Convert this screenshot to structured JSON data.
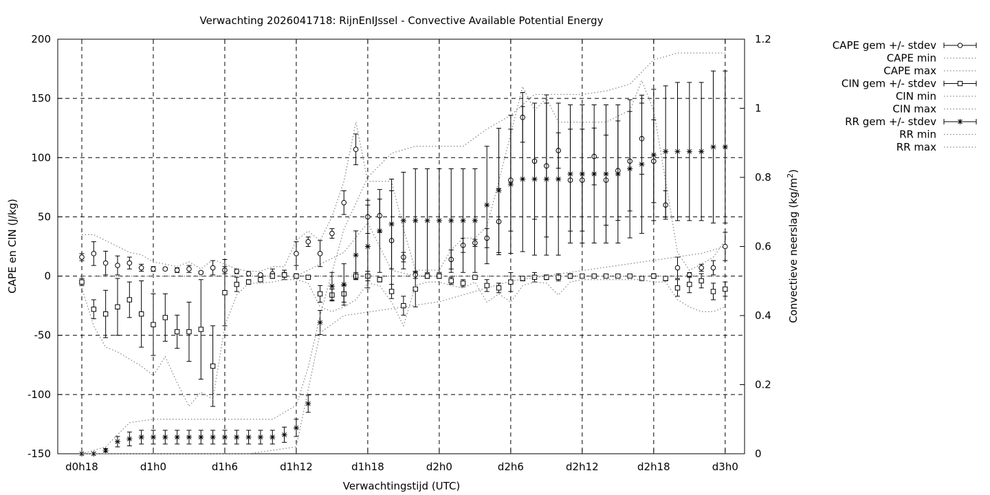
{
  "chart_data": {
    "type": "line",
    "title": "Verwachting 2026041718: RijnEnIJssel - Convective Available Potential Energy",
    "xlabel": "Verwachtingstijd (UTC)",
    "ylabel": "CAPE en CIN (J/kg)",
    "y2label_main": "Convectieve neerslag (kg/m",
    "y2label_sup": "2",
    "y2label_end": ")",
    "x_range": [
      -0.5,
      57
    ],
    "ylim": [
      -150,
      200
    ],
    "y2lim": [
      0,
      1.2
    ],
    "grid": true,
    "legend_position": "top-right outside",
    "x_ticks": [
      {
        "x": 0,
        "label": "d0h18"
      },
      {
        "x": 6,
        "label": "d1h0"
      },
      {
        "x": 12,
        "label": "d1h6"
      },
      {
        "x": 18,
        "label": "d1h12"
      },
      {
        "x": 24,
        "label": "d1h18"
      },
      {
        "x": 30,
        "label": "d2h0"
      },
      {
        "x": 36,
        "label": "d2h6"
      },
      {
        "x": 42,
        "label": "d2h12"
      },
      {
        "x": 48,
        "label": "d2h18"
      },
      {
        "x": 54,
        "label": "d3h0"
      }
    ],
    "y_ticks": [
      {
        "v": -150,
        "label": "-150"
      },
      {
        "v": -100,
        "label": "-100"
      },
      {
        "v": -50,
        "label": "-50"
      },
      {
        "v": 0,
        "label": "0"
      },
      {
        "v": 50,
        "label": "50"
      },
      {
        "v": 100,
        "label": "100"
      },
      {
        "v": 150,
        "label": "150"
      },
      {
        "v": 200,
        "label": "200"
      }
    ],
    "y2_ticks": [
      {
        "v": 0,
        "label": "0"
      },
      {
        "v": 0.2,
        "label": "0.2"
      },
      {
        "v": 0.4,
        "label": "0.4"
      },
      {
        "v": 0.6,
        "label": "0.6"
      },
      {
        "v": 0.8,
        "label": "0.8"
      },
      {
        "v": 1.0,
        "label": "1"
      },
      {
        "v": 1.2,
        "label": "1.2"
      }
    ],
    "series": [
      {
        "name": "CAPE gem +/- stdev",
        "axis": "y1",
        "style": "errorbar",
        "marker": "circle",
        "x": [
          0,
          1,
          2,
          3,
          4,
          5,
          6,
          7,
          8,
          9,
          10,
          11,
          12,
          13,
          14,
          15,
          16,
          17,
          18,
          19,
          20,
          21,
          22,
          23,
          24,
          25,
          26,
          27,
          28,
          29,
          30,
          31,
          32,
          33,
          34,
          35,
          36,
          37,
          38,
          39,
          40,
          41,
          42,
          43,
          44,
          45,
          46,
          47,
          48,
          49,
          50,
          51,
          52,
          53,
          54
        ],
        "y": [
          16,
          19,
          11,
          9,
          11,
          7,
          6,
          6,
          5,
          6,
          3,
          7,
          5,
          4,
          2,
          1,
          2,
          1,
          19,
          29,
          19,
          36,
          62,
          107,
          50,
          51,
          30,
          16,
          1,
          0,
          0,
          14,
          26,
          28,
          32,
          46,
          81,
          134,
          97,
          93,
          106,
          81,
          81,
          101,
          81,
          89,
          97,
          116,
          97,
          60,
          7,
          1,
          7,
          7,
          25
        ],
        "err": [
          3,
          10,
          10,
          8,
          5,
          3,
          2,
          1,
          2,
          3,
          1,
          6,
          3,
          2,
          2,
          1,
          4,
          4,
          10,
          4,
          11,
          4,
          10,
          13,
          14,
          14,
          42,
          4,
          3,
          2,
          2,
          8,
          6,
          3,
          8,
          28,
          43,
          21,
          49,
          60,
          15,
          43,
          43,
          24,
          38,
          42,
          42,
          30,
          35,
          12,
          9,
          2,
          3,
          6,
          12
        ]
      },
      {
        "name": "CAPE min",
        "axis": "y1",
        "style": "dotted",
        "x": [
          0,
          2,
          4,
          6,
          8,
          10,
          12,
          14,
          16,
          18,
          20,
          22,
          24,
          26,
          28,
          30,
          32,
          34,
          36,
          38,
          40,
          42,
          44,
          46,
          48,
          50,
          52,
          54
        ],
        "y": [
          0,
          0,
          0,
          0,
          0,
          0,
          0,
          0,
          0,
          0,
          10,
          20,
          45,
          5,
          0,
          0,
          0,
          0,
          0,
          0,
          0,
          0,
          0,
          0,
          0,
          0,
          0,
          0
        ]
      },
      {
        "name": "CAPE max",
        "axis": "y1",
        "style": "dotted",
        "x": [
          0,
          1,
          2,
          3,
          4,
          5,
          6,
          7,
          8,
          9,
          10,
          11,
          12,
          13,
          14,
          15,
          16,
          17,
          18,
          19,
          20,
          21,
          22,
          23,
          24,
          25,
          26,
          27,
          28,
          29,
          30,
          31,
          32,
          33,
          34,
          35,
          36,
          37,
          38,
          39,
          40,
          41,
          42,
          43,
          44,
          45,
          46,
          47,
          48,
          49,
          50,
          51,
          52,
          53,
          54
        ],
        "y": [
          35,
          35,
          30,
          25,
          20,
          18,
          12,
          10,
          8,
          12,
          6,
          14,
          10,
          6,
          4,
          4,
          8,
          8,
          30,
          38,
          30,
          50,
          80,
          130,
          80,
          80,
          80,
          40,
          5,
          5,
          5,
          22,
          32,
          32,
          42,
          80,
          120,
          160,
          140,
          150,
          130,
          130,
          130,
          130,
          130,
          135,
          140,
          165,
          140,
          80,
          20,
          5,
          10,
          16,
          30
        ]
      },
      {
        "name": "CIN gem +/- stdev",
        "axis": "y1",
        "style": "errorbar",
        "marker": "square",
        "x": [
          0,
          1,
          2,
          3,
          4,
          5,
          6,
          7,
          8,
          9,
          10,
          11,
          12,
          13,
          14,
          15,
          16,
          17,
          18,
          19,
          20,
          21,
          22,
          23,
          24,
          25,
          26,
          27,
          28,
          29,
          30,
          31,
          32,
          33,
          34,
          35,
          36,
          37,
          38,
          39,
          40,
          41,
          42,
          43,
          44,
          45,
          46,
          47,
          48,
          49,
          50,
          51,
          52,
          53,
          54
        ],
        "y": [
          -5,
          -28,
          -32,
          -26,
          -20,
          -32,
          -41,
          -35,
          -47,
          -47,
          -45,
          -76,
          -14,
          -7,
          -5,
          -3,
          0,
          1,
          0,
          -1,
          -15,
          -16,
          -15,
          0,
          0,
          -3,
          -13,
          -25,
          -11,
          0,
          0,
          -4,
          -6,
          -1,
          -8,
          -10,
          -5,
          -2,
          -1,
          -1,
          -1,
          0,
          0,
          0,
          0,
          0,
          0,
          -2,
          0,
          -2,
          -10,
          -7,
          -4,
          -13,
          -11
        ],
        "err": [
          3,
          8,
          20,
          24,
          15,
          28,
          26,
          20,
          14,
          25,
          42,
          34,
          28,
          6,
          2,
          2,
          2,
          2,
          2,
          1,
          7,
          5,
          7,
          3,
          4,
          2,
          6,
          8,
          15,
          2,
          2,
          3,
          3,
          1,
          5,
          4,
          8,
          2,
          4,
          2,
          3,
          2,
          1,
          1,
          1,
          1,
          1,
          1,
          2,
          2,
          7,
          7,
          6,
          7,
          6
        ]
      },
      {
        "name": "CIN min",
        "axis": "y1",
        "style": "dotted",
        "x": [
          0,
          1,
          2,
          3,
          4,
          5,
          6,
          7,
          8,
          9,
          10,
          11,
          12,
          13,
          14,
          15,
          16,
          17,
          18,
          19,
          20,
          21,
          22,
          23,
          24,
          25,
          26,
          27,
          28,
          29,
          30,
          31,
          32,
          33,
          34,
          35,
          36,
          37,
          38,
          39,
          40,
          41,
          42,
          43,
          44,
          45,
          46,
          47,
          48,
          49,
          50,
          51,
          52,
          53,
          54
        ],
        "y": [
          -10,
          -42,
          -60,
          -64,
          -70,
          -76,
          -84,
          -68,
          -90,
          -110,
          -98,
          -104,
          -42,
          -16,
          -6,
          -6,
          -5,
          -3,
          -3,
          -6,
          -26,
          -30,
          -26,
          -20,
          -6,
          -8,
          -22,
          -42,
          -8,
          -5,
          -5,
          -8,
          -10,
          -5,
          -22,
          -15,
          -22,
          -8,
          -5,
          -6,
          -16,
          -5,
          -3,
          -3,
          -3,
          -3,
          -3,
          -3,
          -5,
          -5,
          -20,
          -26,
          -30,
          -30,
          -26
        ]
      },
      {
        "name": "CIN max",
        "axis": "y1",
        "style": "dotted",
        "x": [
          0,
          54
        ],
        "y": [
          0,
          0
        ]
      },
      {
        "name": "RR gem +/- stdev",
        "axis": "y2",
        "style": "errorbar",
        "marker": "star",
        "x": [
          0,
          1,
          2,
          3,
          4,
          5,
          6,
          7,
          8,
          9,
          10,
          11,
          12,
          13,
          14,
          15,
          16,
          17,
          18,
          19,
          20,
          21,
          22,
          23,
          24,
          25,
          26,
          27,
          28,
          29,
          30,
          31,
          32,
          33,
          34,
          35,
          36,
          37,
          38,
          39,
          40,
          41,
          42,
          43,
          44,
          45,
          46,
          47,
          48,
          49,
          50,
          51,
          52,
          53,
          54
        ],
        "y": [
          0,
          0,
          0.01,
          0.035,
          0.043,
          0.048,
          0.048,
          0.048,
          0.048,
          0.048,
          0.048,
          0.048,
          0.048,
          0.048,
          0.048,
          0.048,
          0.048,
          0.055,
          0.075,
          0.145,
          0.38,
          0.485,
          0.49,
          0.575,
          0.6,
          0.645,
          0.665,
          0.675,
          0.675,
          0.675,
          0.675,
          0.675,
          0.675,
          0.675,
          0.72,
          0.762,
          0.78,
          0.795,
          0.795,
          0.795,
          0.795,
          0.81,
          0.81,
          0.81,
          0.81,
          0.81,
          0.825,
          0.838,
          0.865,
          0.875,
          0.875,
          0.875,
          0.875,
          0.888,
          0.888
        ],
        "err": [
          0,
          0,
          0.005,
          0.015,
          0.02,
          0.02,
          0.02,
          0.02,
          0.02,
          0.02,
          0.02,
          0.02,
          0.02,
          0.02,
          0.02,
          0.02,
          0.02,
          0.022,
          0.025,
          0.025,
          0.035,
          0.04,
          0.06,
          0.07,
          0.12,
          0.12,
          0.13,
          0.14,
          0.15,
          0.15,
          0.15,
          0.15,
          0.15,
          0.15,
          0.17,
          0.18,
          0.2,
          0.21,
          0.22,
          0.22,
          0.22,
          0.2,
          0.2,
          0.2,
          0.2,
          0.2,
          0.2,
          0.2,
          0.19,
          0.19,
          0.2,
          0.2,
          0.2,
          0.22,
          0.22
        ]
      },
      {
        "name": "RR min",
        "axis": "y2",
        "style": "dotted",
        "x": [
          0,
          2,
          4,
          6,
          10,
          14,
          18,
          20,
          22,
          24,
          26,
          28,
          30,
          32,
          34,
          36,
          40,
          44,
          48,
          52,
          54
        ],
        "y": [
          0,
          0,
          0,
          0,
          0,
          0,
          0.02,
          0.35,
          0.4,
          0.41,
          0.42,
          0.43,
          0.44,
          0.46,
          0.48,
          0.5,
          0.52,
          0.54,
          0.56,
          0.58,
          0.6
        ]
      },
      {
        "name": "RR max",
        "axis": "y2",
        "style": "dotted",
        "x": [
          0,
          2,
          4,
          6,
          8,
          10,
          12,
          14,
          16,
          18,
          19,
          20,
          22,
          24,
          26,
          28,
          30,
          32,
          34,
          36,
          38,
          40,
          42,
          44,
          46,
          48,
          50,
          52,
          54
        ],
        "y": [
          0,
          0.02,
          0.09,
          0.1,
          0.1,
          0.1,
          0.1,
          0.1,
          0.1,
          0.14,
          0.25,
          0.4,
          0.65,
          0.8,
          0.87,
          0.89,
          0.89,
          0.89,
          0.94,
          0.98,
          1.04,
          1.04,
          1.04,
          1.05,
          1.07,
          1.14,
          1.16,
          1.16,
          1.16
        ]
      }
    ]
  }
}
